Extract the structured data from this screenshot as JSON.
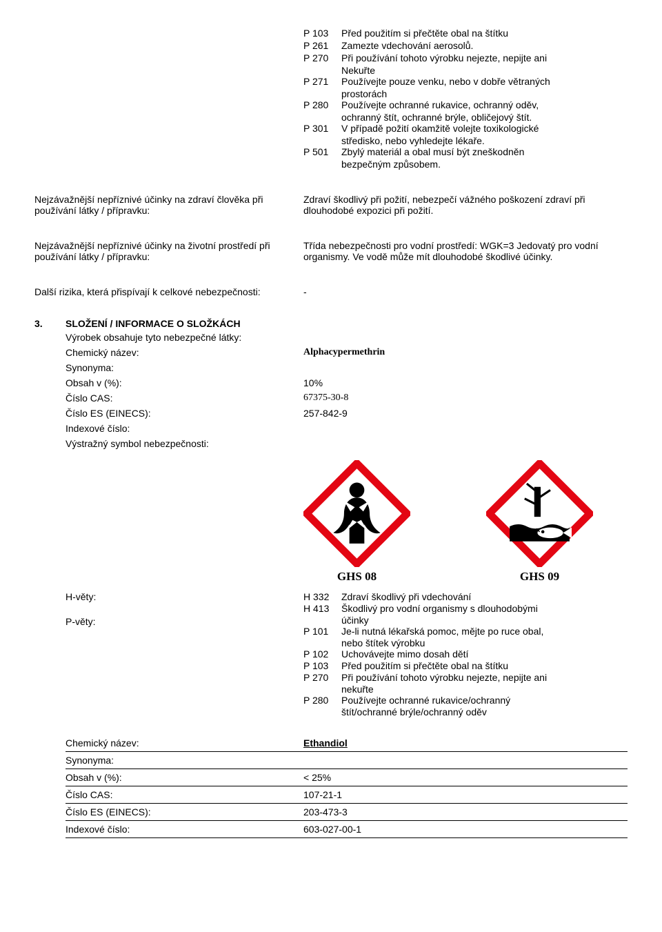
{
  "top_p_statements": [
    {
      "code": "P 103",
      "text": "Před použitím si přečtěte obal na štítku"
    },
    {
      "code": "P 261",
      "text": "Zamezte vdechování aerosolů."
    },
    {
      "code": "P 270",
      "text": "Při používání tohoto výrobku nejezte, nepijte ani",
      "cont": [
        "Nekuřte"
      ]
    },
    {
      "code": "P 271",
      "text": "Používejte pouze venku, nebo v dobře větraných",
      "cont": [
        "prostorách"
      ]
    },
    {
      "code": "P 280",
      "text": "Používejte ochranné rukavice, ochranný oděv,",
      "cont": [
        "ochranný štít, ochranné brýle, obličejový štít."
      ]
    },
    {
      "code": "P 301",
      "text": "V případě požití okamžitě volejte toxikologické",
      "cont": [
        "středisko, nebo vyhledejte lékaře."
      ]
    },
    {
      "code": "P 501",
      "text": "Zbylý materiál a obal musí být zneškodněn",
      "cont": [
        "bezpečným způsobem."
      ]
    }
  ],
  "effects": [
    {
      "label": "Nejzávažnější nepříznivé účinky na zdraví člověka při používání látky / přípravku:",
      "value": "Zdraví škodlivý při požití, nebezpečí vážného poškození zdraví při dlouhodobé expozici při požití."
    },
    {
      "label": "Nejzávažnější nepříznivé účinky na životní prostředí při používání látky / přípravku:",
      "value": "Třída nebezpečnosti pro vodní prostředí: WGK=3 Jedovatý pro vodní organismy. Ve vodě může mít dlouhodobé škodlivé účinky."
    },
    {
      "label": "Další rizika, která přispívají k celkové nebezpečnosti:",
      "value": "-"
    }
  ],
  "section3": {
    "num": "3.",
    "title": "SLOŽENÍ / INFORMACE O SLOŽKÁCH",
    "intro": "Výrobek obsahuje tyto nebezpečné látky:",
    "rows": [
      {
        "k": "Chemický název:",
        "v": "Alphacypermethrin",
        "serif": true,
        "bold": true
      },
      {
        "k": "Synonyma:",
        "v": ""
      },
      {
        "k": "Obsah v (%):",
        "v": "10%"
      },
      {
        "k": "Číslo CAS:",
        "v": "67375-30-8",
        "serif": true
      },
      {
        "k": "Číslo ES (EINECS):",
        "v": "257-842-9"
      },
      {
        "k": "Indexové číslo:",
        "v": ""
      },
      {
        "k": "Výstražný symbol nebezpečnosti:",
        "v": ""
      }
    ],
    "picto1_label": "GHS 08",
    "picto2_label": "GHS 09",
    "hvety_label": "H-věty:",
    "pvety_label": "P-věty:",
    "hp_statements": [
      {
        "code": "H 332",
        "text": "Zdraví škodlivý při vdechování"
      },
      {
        "code": "H 413",
        "text": "Škodlivý pro vodní organismy s dlouhodobými",
        "cont": [
          "účinky"
        ]
      },
      {
        "code": "P 101",
        "text": "Je-li nutná lékařská pomoc, mějte po ruce obal,",
        "cont": [
          "nebo štítek výrobku"
        ]
      },
      {
        "code": "P 102",
        "text": "Uchovávejte mimo dosah dětí"
      },
      {
        "code": "P 103",
        "text": "Před použitím si přečtěte obal na štítku"
      },
      {
        "code": "P 270",
        "text": "Při používání tohoto výrobku nejezte, nepijte ani",
        "cont": [
          "nekuřte"
        ]
      },
      {
        "code": "P 280",
        "text": "Používejte ochranné rukavice/ochranný",
        "cont": [
          "štít/ochranné  brýle/ochranný oděv"
        ]
      }
    ]
  },
  "substance2": {
    "rows": [
      {
        "k": "Chemický název:",
        "v": "Ethandiol",
        "bold": true,
        "underline_v": true
      },
      {
        "k": "Synonyma:",
        "v": ""
      },
      {
        "k": "Obsah v (%):",
        "v": "< 25%"
      },
      {
        "k": "Číslo CAS:",
        "v": "107-21-1"
      },
      {
        "k": "Číslo ES (EINECS):",
        "v": "203-473-3"
      },
      {
        "k": "Indexové číslo:",
        "v": "603-027-00-1"
      }
    ]
  },
  "ghs_colors": {
    "border": "#e30613",
    "fill": "#ffffff",
    "symbol": "#000000"
  }
}
